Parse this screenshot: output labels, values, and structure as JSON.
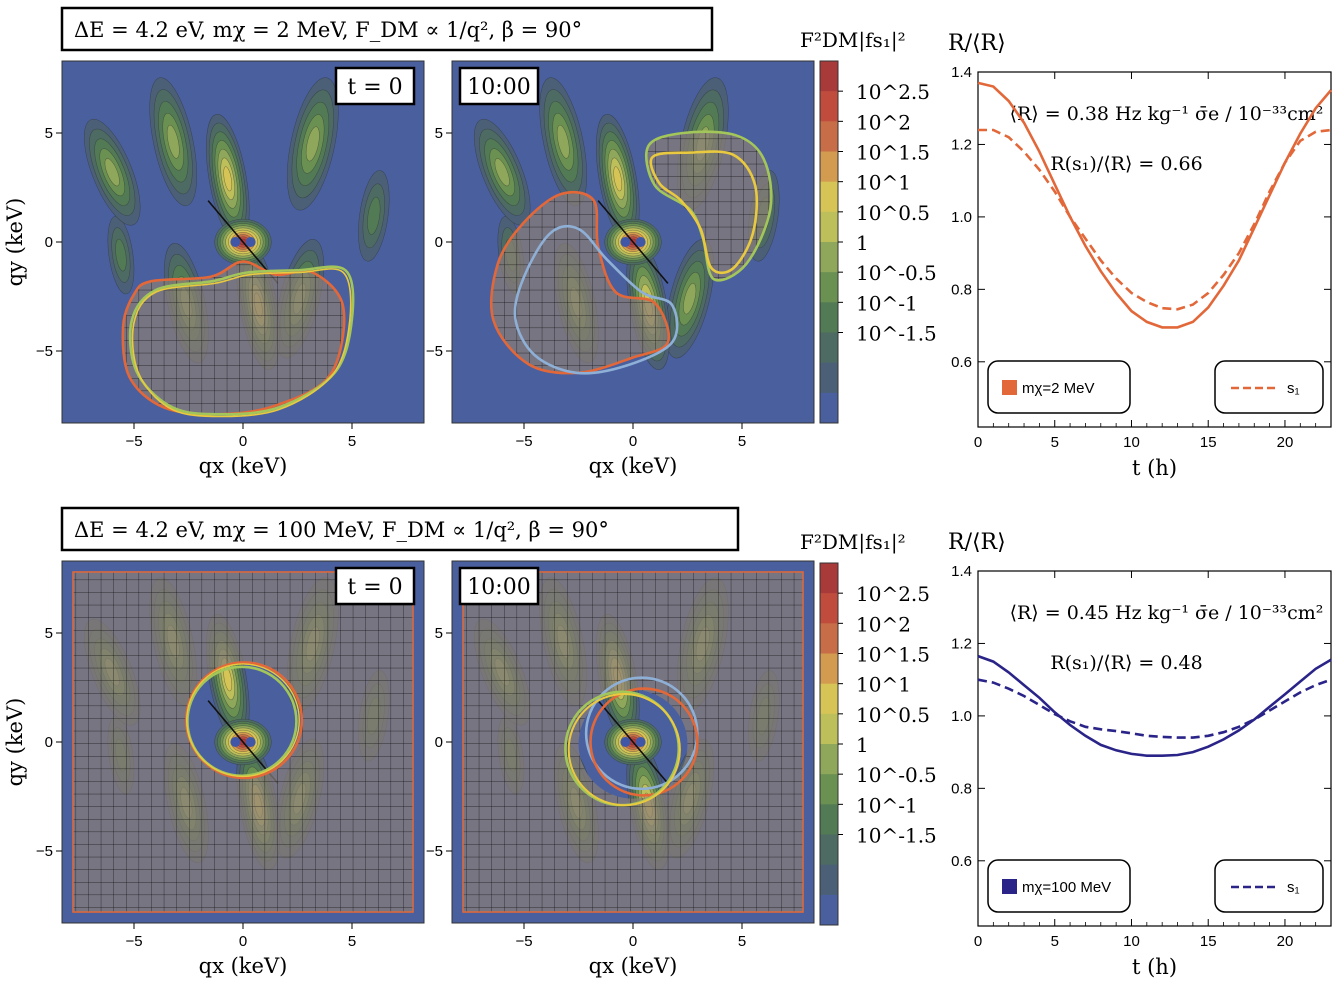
{
  "colors": {
    "background_contour": "#4a5f9e",
    "orange_line": "#e2683a",
    "yellow_line": "#e9c93f",
    "green_line": "#a3c65b",
    "lightblue_line": "#8fb0d6",
    "navy_line": "#2a2488",
    "grid_overlay": "#8a7f78"
  },
  "colorbar": {
    "label": "F²DM|fs₁|²",
    "ticks": [
      "10^2.5",
      "10^2",
      "10^1.5",
      "10^1",
      "10^0.5",
      "1",
      "10^-0.5",
      "10^-1",
      "10^-1.5"
    ],
    "colors": [
      "#a93a3a",
      "#c04c3e",
      "#c76e48",
      "#d39b50",
      "#d6c456",
      "#bdbf5a",
      "#8fa75a",
      "#6b9152",
      "#527a55",
      "#4d6b63",
      "#4b6076",
      "#4a5f9e"
    ]
  },
  "rows": [
    {
      "title": "ΔE = 4.2 eV,   mχ = 2 MeV,   F_DM ∝ 1/q²,   β = 90°",
      "panels": [
        {
          "time_label": "t = 0",
          "mode": "partial"
        },
        {
          "time_label": "10:00",
          "mode": "partial"
        }
      ],
      "axes": {
        "xlabel": "qx (keV)",
        "ylabel": "qy (keV)",
        "x_ticks": [
          "−5",
          "0",
          "5"
        ],
        "y_ticks": [
          "5",
          "0",
          "−5"
        ]
      },
      "chart_data": {
        "type": "line",
        "title": "R/⟨R⟩",
        "xlabel": "t (h)",
        "xlim": [
          0,
          23
        ],
        "ylim": [
          0.42,
          1.4
        ],
        "x_ticks": [
          0,
          5,
          10,
          15,
          20
        ],
        "y_ticks": [
          0.6,
          0.8,
          1.0,
          1.2,
          1.4
        ],
        "y_tick_labels": [
          "0.6",
          "0.8",
          "1.0",
          "1.2",
          "1.4"
        ],
        "x_tick_labels": [
          "0",
          "5",
          "10",
          "15",
          "20"
        ],
        "annotation_avg": "⟨R⟩ = 0.38 Hz kg⁻¹ σ̄e / 10⁻³³cm²",
        "annotation_ratio": "R(s₁)/⟨R⟩ = 0.66",
        "legend_mass": "mχ=2 MeV",
        "legend_s1": "s₁",
        "color": "#e2683a",
        "series": [
          {
            "name": "mχ=2 MeV",
            "style": "solid",
            "x": [
              0,
              1,
              2,
              3,
              4,
              5,
              6,
              7,
              8,
              9,
              10,
              11,
              12,
              13,
              14,
              15,
              16,
              17,
              18,
              19,
              20,
              21,
              22,
              23
            ],
            "values": [
              1.37,
              1.36,
              1.32,
              1.26,
              1.18,
              1.09,
              1.0,
              0.92,
              0.85,
              0.79,
              0.74,
              0.71,
              0.695,
              0.695,
              0.71,
              0.75,
              0.81,
              0.88,
              0.97,
              1.06,
              1.15,
              1.23,
              1.3,
              1.35
            ]
          },
          {
            "name": "s₁",
            "style": "dashed",
            "x": [
              0,
              1,
              2,
              3,
              4,
              5,
              6,
              7,
              8,
              9,
              10,
              11,
              12,
              13,
              14,
              15,
              16,
              17,
              18,
              19,
              20,
              21,
              22,
              23
            ],
            "values": [
              1.24,
              1.24,
              1.22,
              1.18,
              1.13,
              1.07,
              1.0,
              0.94,
              0.88,
              0.83,
              0.79,
              0.765,
              0.748,
              0.745,
              0.758,
              0.79,
              0.84,
              0.9,
              0.98,
              1.07,
              1.15,
              1.21,
              1.235,
              1.24
            ]
          }
        ]
      }
    },
    {
      "title": "ΔE = 4.2 eV,   mχ = 100 MeV,   F_DM ∝ 1/q²,   β = 90°",
      "panels": [
        {
          "time_label": "t = 0",
          "mode": "full"
        },
        {
          "time_label": "10:00",
          "mode": "full"
        }
      ],
      "axes": {
        "xlabel": "qx (keV)",
        "ylabel": "qy (keV)",
        "x_ticks": [
          "−5",
          "0",
          "5"
        ],
        "y_ticks": [
          "5",
          "0",
          "−5"
        ]
      },
      "chart_data": {
        "type": "line",
        "title": "R/⟨R⟩",
        "xlabel": "t (h)",
        "xlim": [
          0,
          23
        ],
        "ylim": [
          0.42,
          1.4
        ],
        "x_ticks": [
          0,
          5,
          10,
          15,
          20
        ],
        "y_ticks": [
          0.6,
          0.8,
          1.0,
          1.2,
          1.4
        ],
        "y_tick_labels": [
          "0.6",
          "0.8",
          "1.0",
          "1.2",
          "1.4"
        ],
        "x_tick_labels": [
          "0",
          "5",
          "10",
          "15",
          "20"
        ],
        "annotation_avg": "⟨R⟩ = 0.45 Hz kg⁻¹ σ̄e / 10⁻³³cm²",
        "annotation_ratio": "R(s₁)/⟨R⟩ = 0.48",
        "legend_mass": "mχ=100 MeV",
        "legend_s1": "s₁",
        "color": "#2a2488",
        "series": [
          {
            "name": "mχ=100 MeV",
            "style": "solid",
            "x": [
              0,
              1,
              2,
              3,
              4,
              5,
              6,
              7,
              8,
              9,
              10,
              11,
              12,
              13,
              14,
              15,
              16,
              17,
              18,
              19,
              20,
              21,
              22,
              23
            ],
            "values": [
              1.165,
              1.15,
              1.12,
              1.085,
              1.05,
              1.01,
              0.975,
              0.945,
              0.92,
              0.905,
              0.895,
              0.89,
              0.89,
              0.892,
              0.9,
              0.915,
              0.935,
              0.96,
              0.99,
              1.025,
              1.06,
              1.095,
              1.13,
              1.155
            ]
          },
          {
            "name": "s₁",
            "style": "dashed",
            "x": [
              0,
              1,
              2,
              3,
              4,
              5,
              6,
              7,
              8,
              9,
              10,
              11,
              12,
              13,
              14,
              15,
              16,
              17,
              18,
              19,
              20,
              21,
              22,
              23
            ],
            "values": [
              1.1,
              1.092,
              1.075,
              1.055,
              1.03,
              1.005,
              0.985,
              0.97,
              0.963,
              0.958,
              0.952,
              0.945,
              0.942,
              0.94,
              0.94,
              0.945,
              0.955,
              0.97,
              0.99,
              1.015,
              1.04,
              1.065,
              1.085,
              1.1
            ]
          }
        ]
      }
    }
  ]
}
